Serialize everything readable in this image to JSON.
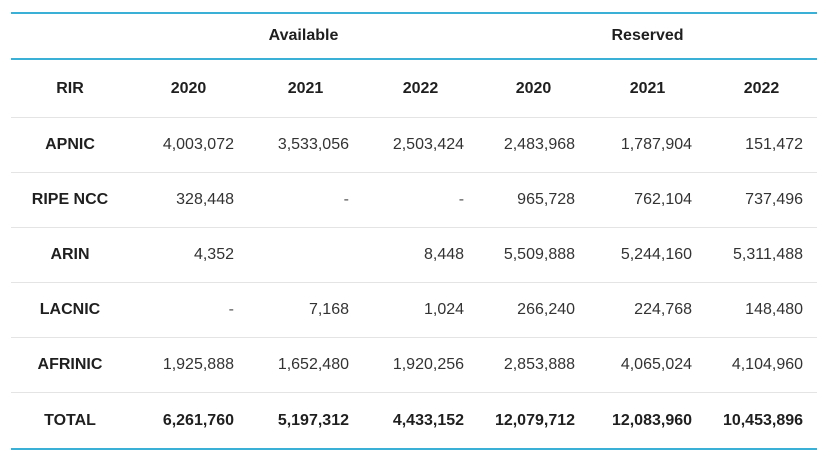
{
  "chart_data": {
    "type": "table",
    "groups": [
      {
        "label": "Available",
        "span": 3
      },
      {
        "label": "Reserved",
        "span": 3
      }
    ],
    "columns": [
      "RIR",
      "2020",
      "2021",
      "2022",
      "2020",
      "2021",
      "2022"
    ],
    "rows": [
      [
        "APNIC",
        "4,003,072",
        "3,533,056",
        "2,503,424",
        "2,483,968",
        "1,787,904",
        "151,472"
      ],
      [
        "RIPE NCC",
        "328,448",
        "-",
        "-",
        "965,728",
        "762,104",
        "737,496"
      ],
      [
        "ARIN",
        "4,352",
        "",
        "8,448",
        "5,509,888",
        "5,244,160",
        "5,311,488"
      ],
      [
        "LACNIC",
        "-",
        "7,168",
        "1,024",
        "266,240",
        "224,768",
        "148,480"
      ],
      [
        "AFRINIC",
        "1,925,888",
        "1,652,480",
        "1,920,256",
        "2,853,888",
        "4,065,024",
        "4,104,960"
      ],
      [
        "TOTAL",
        "6,261,760",
        "5,197,312",
        "4,433,152",
        "12,079,712",
        "12,083,960",
        "10,453,896"
      ]
    ],
    "accent_color": "#3ab0d6",
    "divider_color": "#e4e4e4"
  }
}
